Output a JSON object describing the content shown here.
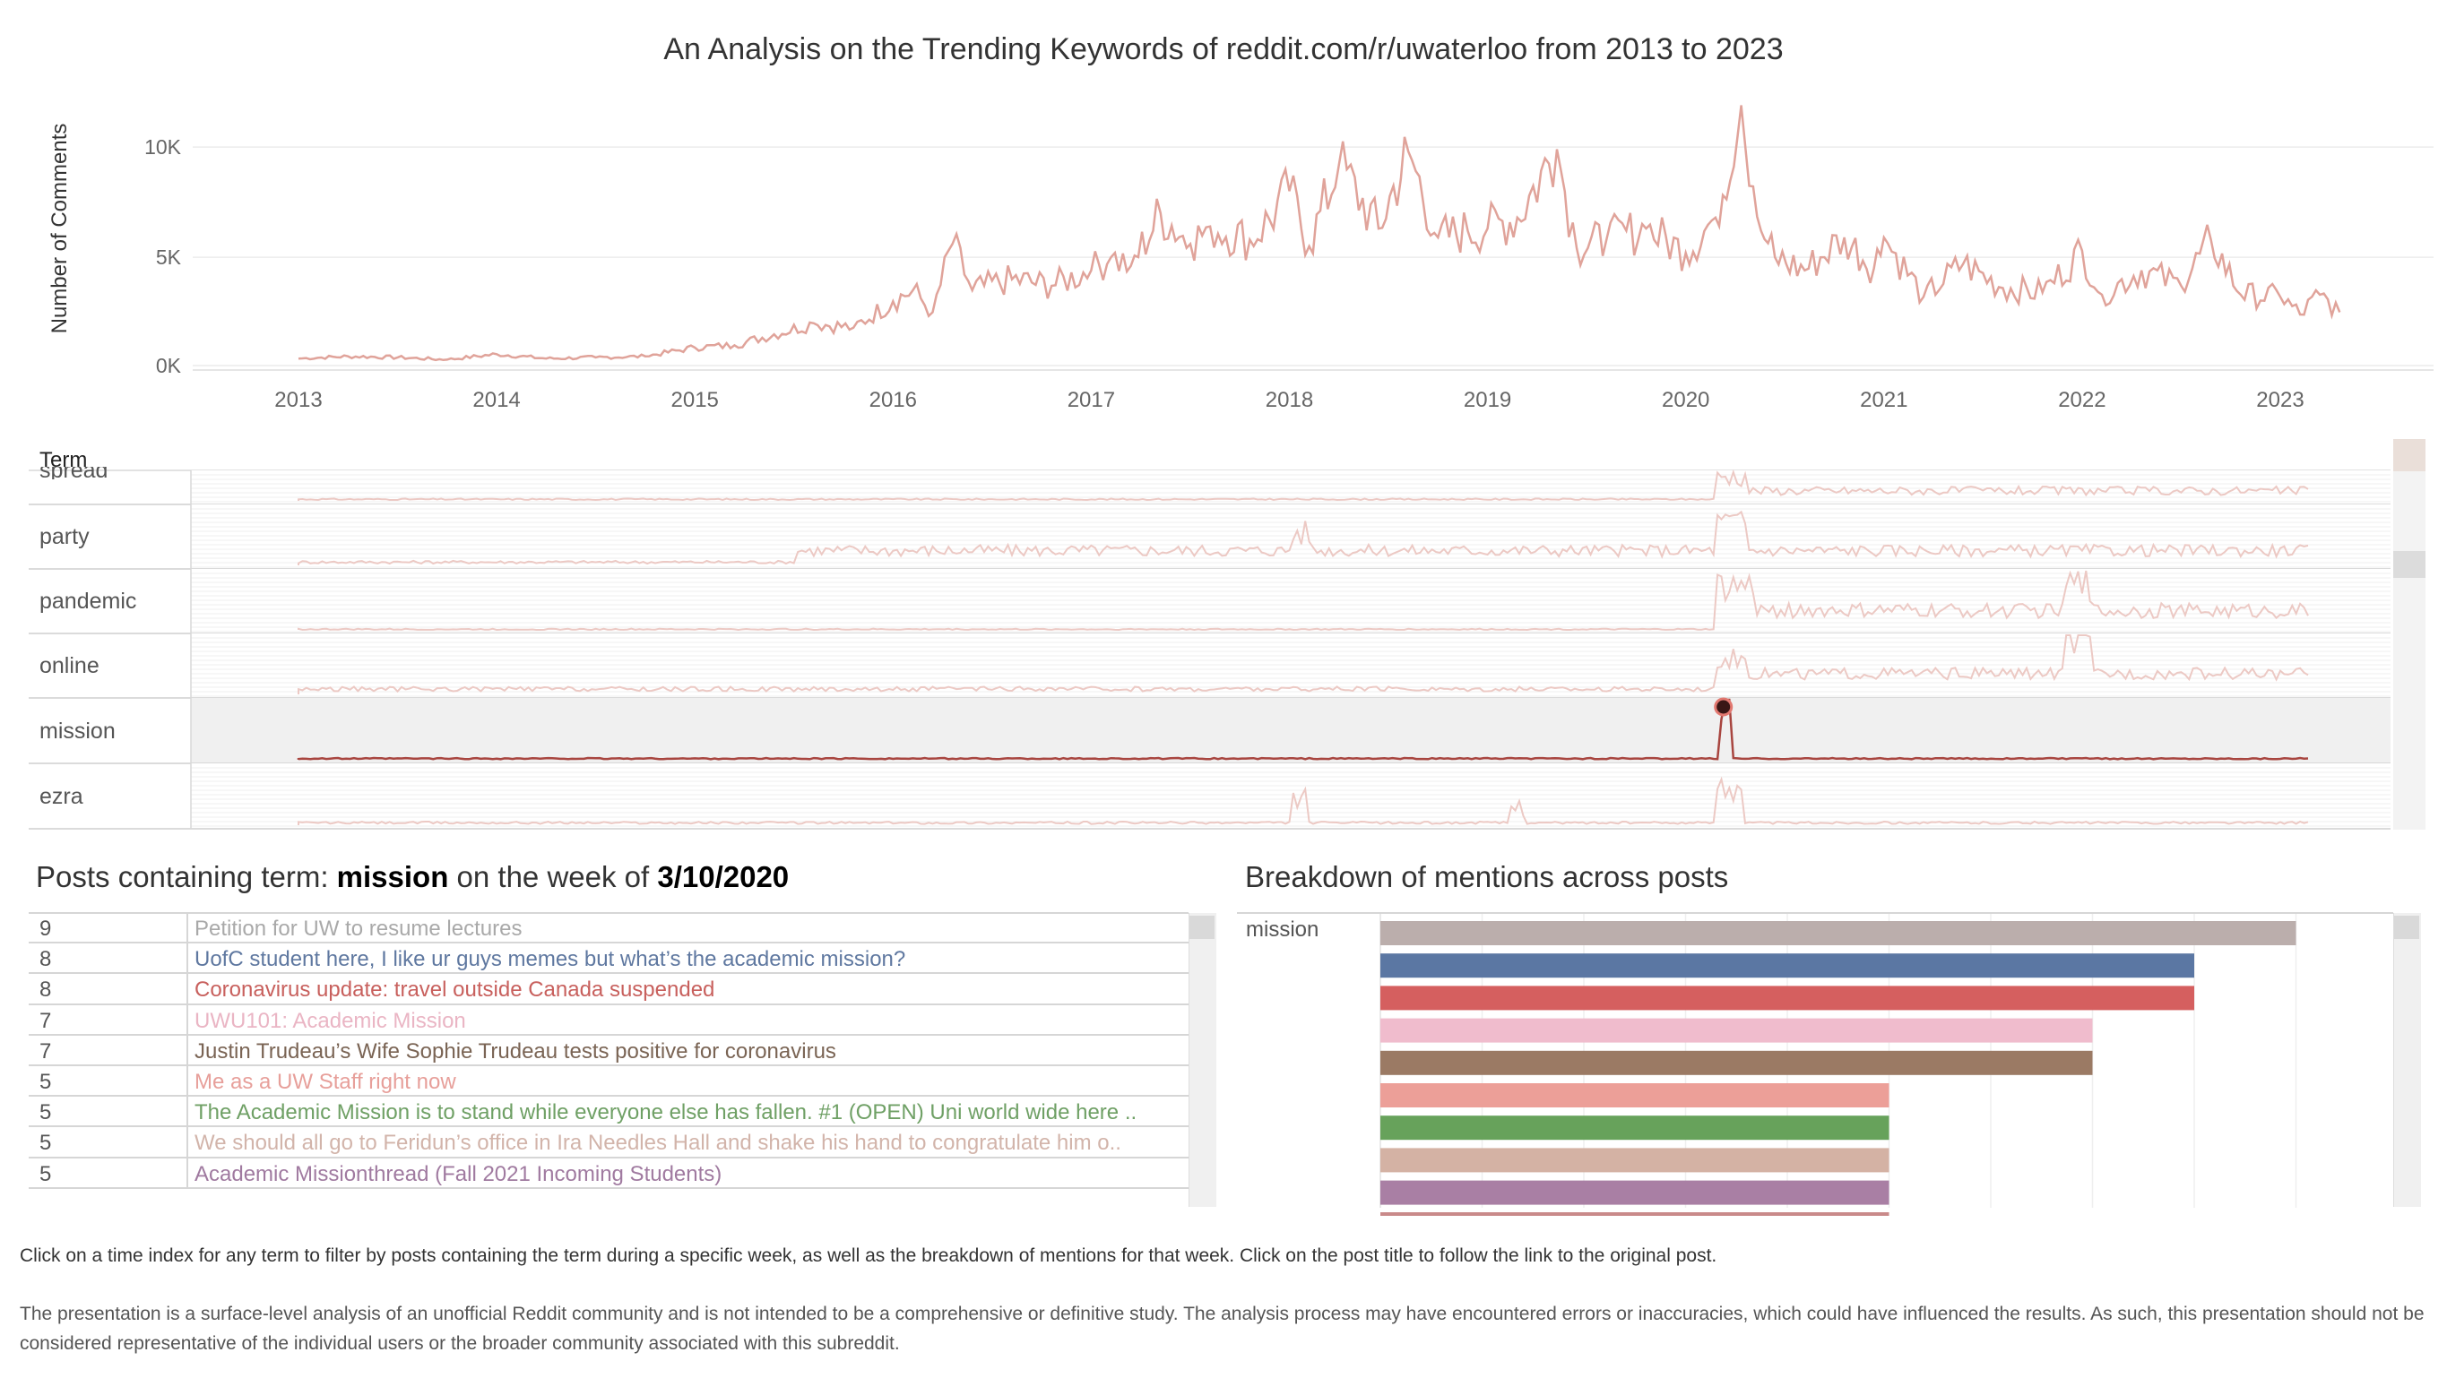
{
  "title": "An Analysis on the Trending Keywords of reddit.com/r/uwaterloo from 2013 to 2023",
  "chart_data": {
    "type": "line",
    "title": "An Analysis on the Trending Keywords of reddit.com/r/uwaterloo from 2013 to 2023",
    "ylabel": "Number of Comments",
    "xlabel": "",
    "x_tick_labels": [
      "2013",
      "2014",
      "2015",
      "2016",
      "2017",
      "2018",
      "2019",
      "2020",
      "2021",
      "2022",
      "2023"
    ],
    "y_tick_labels": [
      "0K",
      "5K",
      "10K"
    ],
    "ylim": [
      0,
      12000
    ],
    "xlim": [
      2013,
      2023.3
    ],
    "grid": true,
    "color": "#e0a39a",
    "x": [
      2013.0,
      2013.25,
      2013.5,
      2013.75,
      2014.0,
      2014.25,
      2014.5,
      2014.75,
      2015.0,
      2015.2,
      2015.4,
      2015.6,
      2015.8,
      2016.0,
      2016.1,
      2016.2,
      2016.3,
      2016.4,
      2016.6,
      2016.8,
      2017.0,
      2017.1,
      2017.2,
      2017.35,
      2017.5,
      2017.6,
      2017.8,
      2017.9,
      2018.0,
      2018.1,
      2018.25,
      2018.45,
      2018.6,
      2018.75,
      2018.9,
      2019.0,
      2019.15,
      2019.35,
      2019.45,
      2019.6,
      2019.8,
      2020.0,
      2020.15,
      2020.28,
      2020.38,
      2020.45,
      2020.6,
      2020.8,
      2020.95,
      2021.0,
      2021.2,
      2021.4,
      2021.6,
      2021.8,
      2022.0,
      2022.1,
      2022.3,
      2022.5,
      2022.65,
      2022.8,
      2023.0,
      2023.1,
      2023.2,
      2023.3
    ],
    "values": [
      400,
      500,
      450,
      350,
      600,
      400,
      450,
      500,
      900,
      1000,
      1500,
      2000,
      1800,
      3000,
      3500,
      2500,
      5600,
      3500,
      4000,
      3700,
      4400,
      5000,
      4600,
      7000,
      5600,
      6400,
      5800,
      6700,
      8000,
      5500,
      9200,
      6300,
      9800,
      5900,
      6200,
      6300,
      6800,
      9900,
      5400,
      5800,
      6300,
      5200,
      6800,
      11900,
      6200,
      5000,
      4400,
      5900,
      4500,
      5900,
      3200,
      4700,
      3600,
      3400,
      5300,
      3300,
      4400,
      3700,
      5800,
      3300,
      3200,
      2400,
      3300,
      2500
    ]
  },
  "term_header": "Term",
  "terms": [
    {
      "label": "spread",
      "selected": false
    },
    {
      "label": "party",
      "selected": false
    },
    {
      "label": "pandemic",
      "selected": false
    },
    {
      "label": "online",
      "selected": false
    },
    {
      "label": "mission",
      "selected": true
    },
    {
      "label": "ezra",
      "selected": false
    }
  ],
  "posts_section": {
    "prefix": "Posts containing term: ",
    "term": "mission",
    "middle": " on the week of ",
    "week": "3/10/2020"
  },
  "posts": [
    {
      "count": "9",
      "title": "Petition for UW to resume lectures",
      "color": "#a9a9a9"
    },
    {
      "count": "8",
      "title": "UofC student here, I like ur guys memes but what’s the academic mission?",
      "color": "#5f78a0"
    },
    {
      "count": "8",
      "title": "Coronavirus update: travel outside Canada suspended",
      "color": "#c8605d"
    },
    {
      "count": "7",
      "title": "UWU101: Academic Mission",
      "color": "#eab5c4"
    },
    {
      "count": "7",
      "title": "Justin Trudeau’s Wife Sophie Trudeau tests positive for coronavirus",
      "color": "#7a6454"
    },
    {
      "count": "5",
      "title": "Me as a UW Staff right now",
      "color": "#e79f9a"
    },
    {
      "count": "5",
      "title": "The Academic Mission is to stand while everyone else has fallen. #1 (OPEN) Uni world wide here ..",
      "color": "#6fa065"
    },
    {
      "count": "5",
      "title": "We should all go to Feridun’s office in Ira Needles Hall and shake his hand to congratulate him o..",
      "color": "#d2b4aa"
    },
    {
      "count": "5",
      "title": "Academic Missionthread (Fall 2021 Incoming Students)",
      "color": "#a07aa0"
    }
  ],
  "breakdown": {
    "title": "Breakdown of mentions across posts",
    "term": "mission",
    "values": [
      9,
      8,
      8,
      7,
      7,
      5,
      5,
      5,
      5
    ],
    "colors": [
      "#bbaeac",
      "#5b77a3",
      "#d55f5f",
      "#f0bccd",
      "#9b7a64",
      "#ec9f98",
      "#67a25b",
      "#d4b2a4",
      "#a97fa4"
    ]
  },
  "instructions": "Click on a time index for any term to filter by posts containing the term during a specific week, as well as the breakdown of mentions for that week. Click on the post title to follow the link to the original post.",
  "disclaimer": "The presentation is a surface-level analysis of an unofficial Reddit community and is not intended to be a comprehensive or definitive study. The analysis process may have encountered errors or inaccuracies, which could have influenced the results. As such, this presentation should not be considered representative of the individual users or the broader community associated with this subreddit."
}
